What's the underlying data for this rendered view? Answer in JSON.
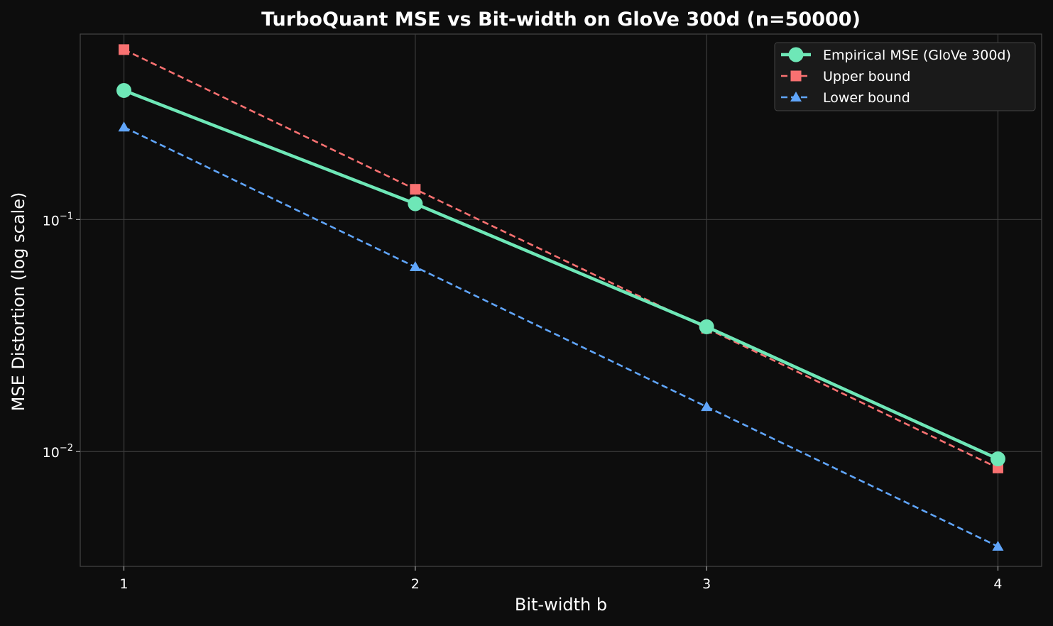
{
  "chart_data": {
    "type": "line",
    "title": "TurboQuant MSE vs Bit-width on GloVe 300d (n=50000)",
    "xlabel": "Bit-width b",
    "ylabel": "MSE Distortion (log scale)",
    "x": [
      1,
      2,
      3,
      4
    ],
    "x_ticks": [
      "1",
      "2",
      "3",
      "4"
    ],
    "x_range": [
      0.85,
      4.15
    ],
    "y_scale": "log",
    "y_range": [
      0.0032,
      0.63
    ],
    "y_ticks": [
      {
        "value": 0.1,
        "base": "10",
        "exp": "−1"
      },
      {
        "value": 0.01,
        "base": "10",
        "exp": "−2"
      }
    ],
    "grid": true,
    "legend_position": "top-right",
    "series": [
      {
        "name": "Empirical MSE (GloVe 300d)",
        "values": [
          0.36,
          0.117,
          0.0345,
          0.0093
        ],
        "color": "#6ee7b7",
        "marker": "circle",
        "dash": "solid"
      },
      {
        "name": "Upper bound",
        "values": [
          0.54,
          0.135,
          0.034,
          0.0085
        ],
        "color": "#f87171",
        "marker": "square",
        "dash": "dashed"
      },
      {
        "name": "Lower bound",
        "values": [
          0.25,
          0.0625,
          0.0156,
          0.0039
        ],
        "color": "#60a5fa",
        "marker": "triangle",
        "dash": "dashed"
      }
    ]
  }
}
